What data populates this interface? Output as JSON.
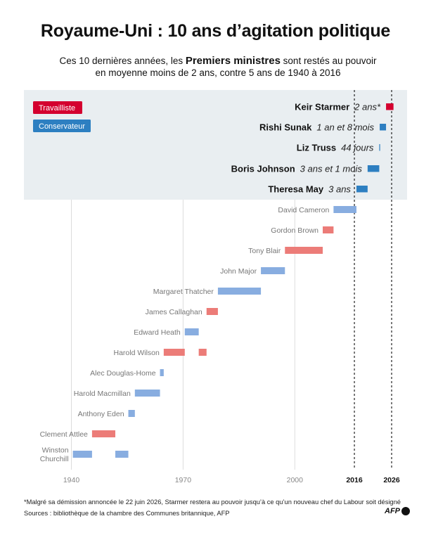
{
  "title": "Royaume-Uni : 10 ans d’agitation politique",
  "subtitle": {
    "pre": "Ces 10 dernières années, les ",
    "bold": "Premiers ministres",
    "post1": " sont restés au pouvoir",
    "line2": "en moyenne moins de 2 ans, contre 5 ans de 1940 à 2016"
  },
  "colors": {
    "labour": "#e0393e",
    "labour_faded": "#ec7c78",
    "conservative": "#2d7fc1",
    "conservative_faded": "#88ade0",
    "highlight_bg": "#e9eef1",
    "starmer": "#d4002f"
  },
  "chart_data": {
    "type": "timeline",
    "x_range": [
      1930,
      2030
    ],
    "x_ticks": [
      {
        "value": 1940,
        "label": "1940",
        "bold": false
      },
      {
        "value": 1970,
        "label": "1970",
        "bold": false
      },
      {
        "value": 2000,
        "label": "2000",
        "bold": false
      },
      {
        "value": 2016,
        "label": "2016",
        "bold": true
      },
      {
        "value": 2026,
        "label": "2026",
        "bold": true
      }
    ],
    "legend": [
      {
        "label": "Travailliste",
        "party": "labour"
      },
      {
        "label": "Conservateur",
        "party": "conservative"
      }
    ],
    "recent": [
      {
        "name": "Keir Starmer",
        "duration": "2 ans*",
        "party": "labour",
        "terms": [
          [
            2024.5,
            2026.5
          ]
        ]
      },
      {
        "name": "Rishi Sunak",
        "duration": "1 an et 8 mois",
        "party": "conservative",
        "terms": [
          [
            2022.8,
            2024.5
          ]
        ]
      },
      {
        "name": "Liz Truss",
        "duration": "44 jours",
        "party": "conservative",
        "terms": [
          [
            2022.68,
            2022.8
          ]
        ]
      },
      {
        "name": "Boris Johnson",
        "duration": "3 ans et 1 mois",
        "party": "conservative",
        "terms": [
          [
            2019.55,
            2022.68
          ]
        ]
      },
      {
        "name": "Theresa May",
        "duration": "3 ans",
        "party": "conservative",
        "terms": [
          [
            2016.55,
            2019.55
          ]
        ]
      }
    ],
    "past": [
      {
        "name": "David Cameron",
        "party": "conservative",
        "terms": [
          [
            2010.4,
            2016.55
          ]
        ]
      },
      {
        "name": "Gordon Brown",
        "party": "labour",
        "terms": [
          [
            2007.5,
            2010.4
          ]
        ]
      },
      {
        "name": "Tony Blair",
        "party": "labour",
        "terms": [
          [
            1997.35,
            2007.5
          ]
        ]
      },
      {
        "name": "John Major",
        "party": "conservative",
        "terms": [
          [
            1990.9,
            1997.35
          ]
        ]
      },
      {
        "name": "Margaret Thatcher",
        "party": "conservative",
        "terms": [
          [
            1979.35,
            1990.9
          ]
        ]
      },
      {
        "name": "James Callaghan",
        "party": "labour",
        "terms": [
          [
            1976.3,
            1979.35
          ]
        ]
      },
      {
        "name": "Edward Heath",
        "party": "conservative",
        "terms": [
          [
            1970.45,
            1974.2
          ]
        ]
      },
      {
        "name": "Harold Wilson",
        "party": "labour",
        "terms": [
          [
            1964.8,
            1970.45
          ],
          [
            1974.2,
            1976.3
          ]
        ]
      },
      {
        "name": "Alec Douglas-Home",
        "party": "conservative",
        "terms": [
          [
            1963.8,
            1964.8
          ]
        ]
      },
      {
        "name": "Harold Macmillan",
        "party": "conservative",
        "terms": [
          [
            1957.05,
            1963.8
          ]
        ]
      },
      {
        "name": "Anthony Eden",
        "party": "conservative",
        "terms": [
          [
            1955.3,
            1957.05
          ]
        ]
      },
      {
        "name": "Clement Attlee",
        "party": "labour",
        "terms": [
          [
            1945.55,
            1951.8
          ]
        ]
      },
      {
        "name": "Winston Churchill",
        "label_lines": [
          "Winston",
          "Churchill"
        ],
        "party": "conservative",
        "terms": [
          [
            1940.4,
            1945.55
          ],
          [
            1951.8,
            1955.3
          ]
        ]
      }
    ]
  },
  "footnote": "*Malgré sa démission annoncée le 22 juin 2026, Starmer restera au pouvoir jusqu’à ce qu’un nouveau chef du Labour soit désigné",
  "sources": "Sources : bibliothèque de la chambre des Communes britannique, AFP",
  "logo": "AFP"
}
